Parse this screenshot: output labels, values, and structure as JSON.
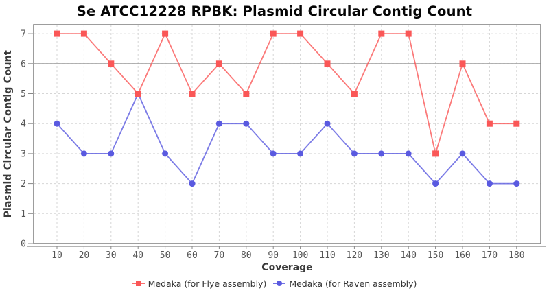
{
  "chart_data": {
    "type": "line",
    "title": "Se ATCC12228 RPBK: Plasmid Circular Contig Count",
    "xlabel": "Coverage",
    "ylabel": "Plasmid Circular Contig Count",
    "categories": [
      10,
      20,
      30,
      40,
      50,
      60,
      70,
      80,
      90,
      100,
      110,
      120,
      130,
      140,
      150,
      160,
      170,
      180
    ],
    "series": [
      {
        "name": "Medaka (for Flye assembly)",
        "marker": "square",
        "color": "#fa5757",
        "values": [
          7,
          7,
          6,
          5,
          7,
          5,
          6,
          5,
          7,
          7,
          6,
          5,
          7,
          7,
          3,
          6,
          4,
          4
        ]
      },
      {
        "name": "Medaka (for Raven assembly)",
        "marker": "circle",
        "color": "#5a5ae0",
        "values": [
          4,
          3,
          3,
          5,
          3,
          2,
          4,
          4,
          3,
          3,
          4,
          3,
          3,
          3,
          2,
          3,
          2,
          2
        ]
      }
    ],
    "ylim": [
      0,
      7
    ],
    "yticks": [
      0,
      1,
      2,
      3,
      4,
      5,
      6,
      7
    ],
    "grid": true,
    "reference_line_y": 6,
    "legend_position": "bottom"
  },
  "colors": {
    "grid": "#d6d6d6",
    "reference_line": "#9b9b9b",
    "frame": "#858585",
    "spine": "#888888",
    "tick_label": "#555555",
    "axis_label": "#3a3a3a",
    "title": "#050505",
    "background": "#ffffff"
  }
}
